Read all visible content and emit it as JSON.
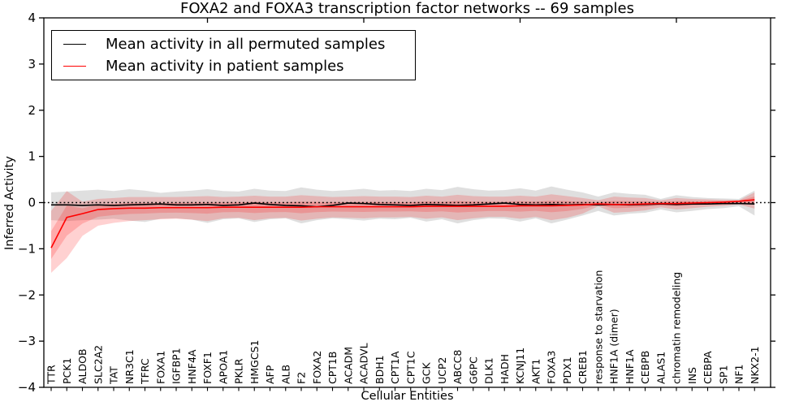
{
  "chart_data": {
    "type": "line",
    "title": "FOXA2 and FOXA3 transcription factor networks -- 69 samples",
    "xlabel": "Cellular Entities",
    "ylabel": "Inferred Activity",
    "ylim": [
      -4,
      4
    ],
    "yticks": [
      4,
      3,
      2,
      1,
      0,
      -1,
      -2,
      -3,
      -4
    ],
    "grid": false,
    "background": "#ffffff",
    "legend_position": "upper left",
    "reference_line": 0,
    "reference_line_style": "dotted",
    "categories": [
      "TTR",
      "PCK1",
      "ALDOB",
      "SLC2A2",
      "TAT",
      "NR3C1",
      "TFRC",
      "FOXA1",
      "IGFBP1",
      "HNF4A",
      "FOXF1",
      "APOA1",
      "PKLR",
      "HMGCS1",
      "AFP",
      "ALB",
      "F2",
      "FOXA2",
      "CPT1B",
      "ACADM",
      "ACADVL",
      "BDH1",
      "CPT1A",
      "CPT1C",
      "GCK",
      "UCP2",
      "ABCC8",
      "G6PC",
      "DLK1",
      "HADH",
      "KCNJ11",
      "AKT1",
      "FOXA3",
      "PDX1",
      "CREB1",
      "response to starvation",
      "HNF1A (dimer)",
      "HNF1A",
      "CEBPB",
      "ALAS1",
      "chromatin remodeling",
      "INS",
      "CEBPA",
      "SP1",
      "NF1",
      "NKX2-1"
    ],
    "series": [
      {
        "name": "Mean activity in all permuted samples",
        "color": "#000000",
        "band_color": "rgba(128,128,128,0.25)",
        "values": [
          -0.05,
          -0.05,
          -0.06,
          -0.05,
          -0.06,
          -0.05,
          -0.04,
          -0.03,
          -0.05,
          -0.05,
          -0.04,
          -0.06,
          -0.05,
          -0.01,
          -0.04,
          -0.06,
          -0.07,
          -0.09,
          -0.06,
          -0.01,
          -0.02,
          -0.04,
          -0.05,
          -0.06,
          -0.04,
          -0.05,
          -0.06,
          -0.05,
          -0.03,
          -0.01,
          -0.04,
          -0.05,
          -0.04,
          -0.05,
          -0.04,
          -0.05,
          -0.04,
          -0.05,
          -0.04,
          -0.03,
          -0.04,
          -0.03,
          -0.03,
          -0.02,
          -0.02,
          -0.03
        ],
        "band_upper": [
          0.22,
          0.24,
          0.26,
          0.28,
          0.25,
          0.29,
          0.26,
          0.21,
          0.24,
          0.26,
          0.29,
          0.25,
          0.24,
          0.3,
          0.26,
          0.25,
          0.33,
          0.28,
          0.25,
          0.27,
          0.3,
          0.26,
          0.27,
          0.25,
          0.3,
          0.27,
          0.34,
          0.29,
          0.26,
          0.27,
          0.31,
          0.26,
          0.35,
          0.28,
          0.22,
          0.13,
          0.22,
          0.19,
          0.17,
          0.08,
          0.16,
          0.12,
          0.1,
          0.09,
          0.08,
          0.26
        ],
        "band_lower": [
          -0.38,
          -0.4,
          -0.38,
          -0.37,
          -0.35,
          -0.39,
          -0.42,
          -0.35,
          -0.34,
          -0.37,
          -0.44,
          -0.36,
          -0.34,
          -0.42,
          -0.36,
          -0.34,
          -0.45,
          -0.38,
          -0.34,
          -0.36,
          -0.39,
          -0.35,
          -0.36,
          -0.33,
          -0.41,
          -0.36,
          -0.45,
          -0.38,
          -0.34,
          -0.35,
          -0.41,
          -0.34,
          -0.45,
          -0.37,
          -0.28,
          -0.18,
          -0.28,
          -0.24,
          -0.22,
          -0.15,
          -0.21,
          -0.18,
          -0.14,
          -0.12,
          -0.08,
          -0.28
        ]
      },
      {
        "name": "Mean activity in patient samples",
        "color": "#ff0000",
        "band_color": "rgba(255,0,0,0.18)",
        "inner_band_fraction": 0.45,
        "values": [
          -0.98,
          -0.32,
          -0.24,
          -0.15,
          -0.13,
          -0.12,
          -0.12,
          -0.11,
          -0.11,
          -0.11,
          -0.11,
          -0.1,
          -0.1,
          -0.1,
          -0.1,
          -0.1,
          -0.1,
          -0.09,
          -0.09,
          -0.09,
          -0.09,
          -0.09,
          -0.09,
          -0.09,
          -0.08,
          -0.08,
          -0.08,
          -0.08,
          -0.08,
          -0.08,
          -0.07,
          -0.07,
          -0.07,
          -0.06,
          -0.05,
          -0.03,
          -0.04,
          -0.04,
          -0.03,
          -0.02,
          -0.02,
          -0.01,
          0.0,
          0.01,
          0.03,
          0.06
        ],
        "band_upper": [
          -0.18,
          0.25,
          0.02,
          0.08,
          0.1,
          0.12,
          0.12,
          0.12,
          0.12,
          0.13,
          0.14,
          0.12,
          0.13,
          0.15,
          0.13,
          0.13,
          0.16,
          0.14,
          0.12,
          0.13,
          0.14,
          0.13,
          0.13,
          0.12,
          0.15,
          0.13,
          0.17,
          0.14,
          0.13,
          0.13,
          0.15,
          0.13,
          0.18,
          0.14,
          0.1,
          0.05,
          0.13,
          0.11,
          0.1,
          0.05,
          0.1,
          0.08,
          0.07,
          0.06,
          0.05,
          0.22
        ],
        "band_lower": [
          -1.52,
          -1.2,
          -0.72,
          -0.5,
          -0.44,
          -0.4,
          -0.38,
          -0.36,
          -0.35,
          -0.37,
          -0.4,
          -0.34,
          -0.33,
          -0.38,
          -0.34,
          -0.33,
          -0.39,
          -0.35,
          -0.32,
          -0.33,
          -0.34,
          -0.32,
          -0.32,
          -0.31,
          -0.35,
          -0.32,
          -0.38,
          -0.34,
          -0.31,
          -0.31,
          -0.35,
          -0.31,
          -0.38,
          -0.33,
          -0.24,
          -0.08,
          -0.22,
          -0.2,
          -0.17,
          -0.1,
          -0.15,
          -0.12,
          -0.09,
          -0.07,
          -0.04,
          -0.13
        ]
      }
    ]
  }
}
